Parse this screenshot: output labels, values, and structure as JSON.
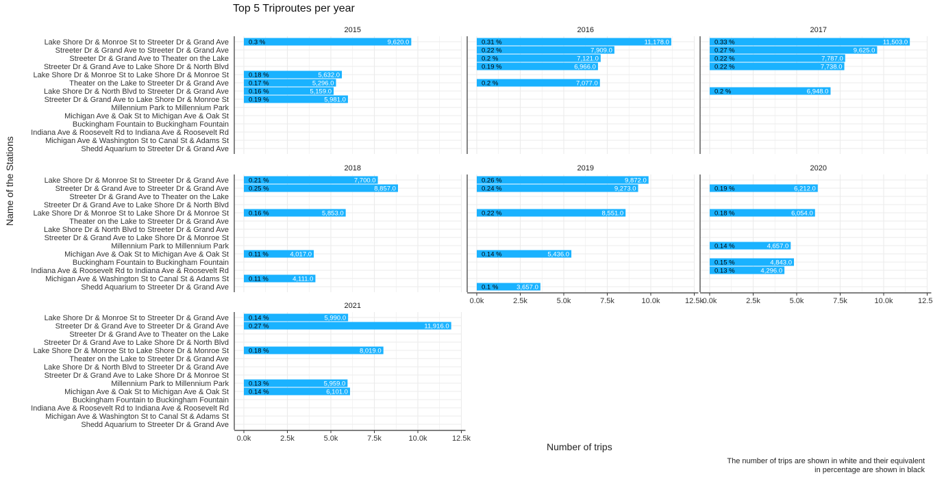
{
  "chart_title": "Top 5 Triproutes per year",
  "axis": {
    "xlabel": "Number of trips",
    "ylabel": "Name of the Stations"
  },
  "caption": "The number of trips are shown in white and their equivalent\nin percentage are shown in black",
  "colors": {
    "bar": "#1ab2ff",
    "grid": "#ebebeb",
    "white_label": "#ffffff",
    "black_label": "#000000"
  },
  "chart_data": {
    "type": "bar",
    "orientation": "horizontal",
    "facet_layout": "3x3 wrap, 7 panels",
    "categories": [
      "Lake Shore Dr & Monroe St to Streeter Dr & Grand Ave",
      "Streeter Dr & Grand Ave to Streeter Dr & Grand Ave",
      "Streeter Dr & Grand Ave to Theater on the Lake",
      "Streeter Dr & Grand Ave to Lake Shore Dr & North Blvd",
      "Lake Shore Dr & Monroe St to Lake Shore Dr & Monroe St",
      "Theater on the Lake to Streeter Dr & Grand Ave",
      "Lake Shore Dr & North Blvd to Streeter Dr & Grand Ave",
      "Streeter Dr & Grand Ave to Lake Shore Dr & Monroe St",
      "Millennium Park to Millennium Park",
      "Michigan Ave & Oak St to Michigan Ave & Oak St",
      "Buckingham Fountain to Buckingham Fountain",
      "Indiana Ave & Roosevelt Rd to Indiana Ave & Roosevelt Rd",
      "Michigan Ave & Washington St to Canal St & Adams St",
      "Shedd Aquarium to Streeter Dr & Grand Ave"
    ],
    "xlim": [
      0,
      12500
    ],
    "xticks": [
      0,
      2500,
      5000,
      7500,
      10000,
      12500
    ],
    "xtick_labels": [
      "0.0k",
      "2.5k",
      "5.0k",
      "7.5k",
      "10.0k",
      "12.5k"
    ],
    "grid": true,
    "panels": [
      {
        "year": "2015",
        "bars": [
          {
            "row": 0,
            "value": 9620,
            "label": "9,620.0",
            "pct": "0.3 %"
          },
          {
            "row": 4,
            "value": 5632,
            "label": "5,632.0",
            "pct": "0.18 %"
          },
          {
            "row": 5,
            "value": 5296,
            "label": "5,296.0",
            "pct": "0.17 %"
          },
          {
            "row": 6,
            "value": 5159,
            "label": "5,159.0",
            "pct": "0.16 %"
          },
          {
            "row": 7,
            "value": 5981,
            "label": "5,981.0",
            "pct": "0.19 %"
          }
        ]
      },
      {
        "year": "2016",
        "bars": [
          {
            "row": 0,
            "value": 11178,
            "label": "11,178.0",
            "pct": "0.31 %"
          },
          {
            "row": 1,
            "value": 7909,
            "label": "7,909.0",
            "pct": "0.22 %"
          },
          {
            "row": 2,
            "value": 7121,
            "label": "7,121.0",
            "pct": "0.2 %"
          },
          {
            "row": 3,
            "value": 6966,
            "label": "6,966.0",
            "pct": "0.19 %"
          },
          {
            "row": 5,
            "value": 7077,
            "label": "7,077.0",
            "pct": "0.2 %"
          }
        ]
      },
      {
        "year": "2017",
        "bars": [
          {
            "row": 0,
            "value": 11503,
            "label": "11,503.0",
            "pct": "0.33 %"
          },
          {
            "row": 1,
            "value": 9625,
            "label": "9,625.0",
            "pct": "0.27 %"
          },
          {
            "row": 2,
            "value": 7787,
            "label": "7,787.0",
            "pct": "0.22 %"
          },
          {
            "row": 3,
            "value": 7738,
            "label": "7,738.0",
            "pct": "0.22 %"
          },
          {
            "row": 6,
            "value": 6948,
            "label": "6,948.0",
            "pct": "0.2 %"
          }
        ]
      },
      {
        "year": "2018",
        "bars": [
          {
            "row": 0,
            "value": 7700,
            "label": "7,700.0",
            "pct": "0.21 %"
          },
          {
            "row": 1,
            "value": 8857,
            "label": "8,857.0",
            "pct": "0.25 %"
          },
          {
            "row": 4,
            "value": 5853,
            "label": "5,853.0",
            "pct": "0.16 %"
          },
          {
            "row": 9,
            "value": 4017,
            "label": "4,017.0",
            "pct": "0.11 %"
          },
          {
            "row": 12,
            "value": 4111,
            "label": "4,111.0",
            "pct": "0.11 %"
          }
        ]
      },
      {
        "year": "2019",
        "bars": [
          {
            "row": 0,
            "value": 9872,
            "label": "9,872.0",
            "pct": "0.26 %"
          },
          {
            "row": 1,
            "value": 9273,
            "label": "9,273.0",
            "pct": "0.24 %"
          },
          {
            "row": 4,
            "value": 8551,
            "label": "8,551.0",
            "pct": "0.22 %"
          },
          {
            "row": 9,
            "value": 5436,
            "label": "5,436.0",
            "pct": "0.14 %"
          },
          {
            "row": 13,
            "value": 3657,
            "label": "3,657.0",
            "pct": "0.1 %"
          }
        ]
      },
      {
        "year": "2020",
        "bars": [
          {
            "row": 1,
            "value": 6212,
            "label": "6,212.0",
            "pct": "0.19 %"
          },
          {
            "row": 4,
            "value": 6054,
            "label": "6,054.0",
            "pct": "0.18 %"
          },
          {
            "row": 8,
            "value": 4657,
            "label": "4,657.0",
            "pct": "0.14 %"
          },
          {
            "row": 10,
            "value": 4843,
            "label": "4,843.0",
            "pct": "0.15 %"
          },
          {
            "row": 11,
            "value": 4296,
            "label": "4,296.0",
            "pct": "0.13 %"
          }
        ]
      },
      {
        "year": "2021",
        "bars": [
          {
            "row": 0,
            "value": 5990,
            "label": "5,990.0",
            "pct": "0.14 %"
          },
          {
            "row": 1,
            "value": 11916,
            "label": "11,916.0",
            "pct": "0.27 %"
          },
          {
            "row": 4,
            "value": 8019,
            "label": "8,019.0",
            "pct": "0.18 %"
          },
          {
            "row": 8,
            "value": 5959,
            "label": "5,959.0",
            "pct": "0.13 %"
          },
          {
            "row": 9,
            "value": 6101,
            "label": "6,101.0",
            "pct": "0.14 %"
          }
        ]
      }
    ]
  }
}
